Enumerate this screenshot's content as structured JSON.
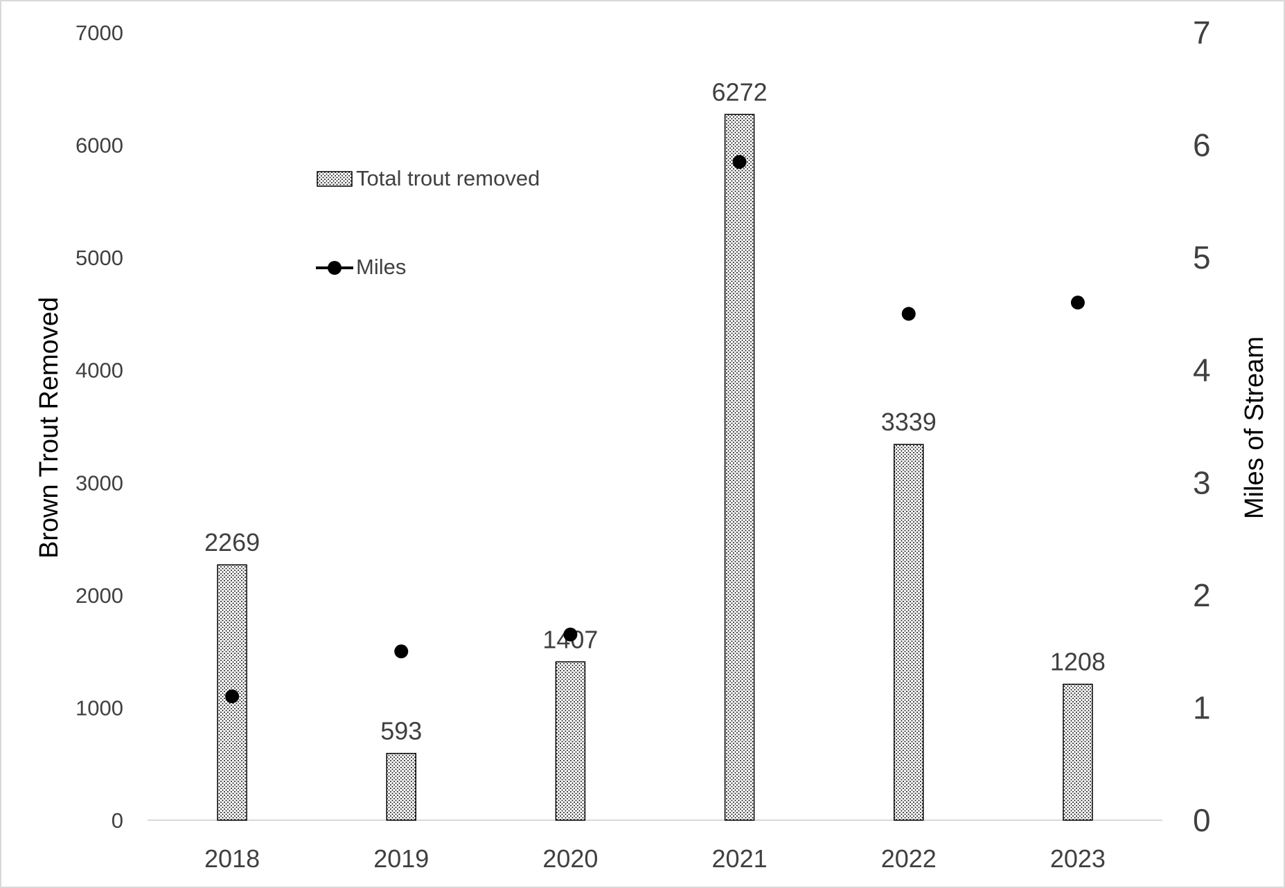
{
  "chart_data": {
    "type": "bar",
    "categories": [
      "2018",
      "2019",
      "2020",
      "2021",
      "2022",
      "2023"
    ],
    "series": [
      {
        "name": "Total trout removed",
        "type": "bar",
        "axis": "left",
        "values": [
          2269,
          593,
          1407,
          6272,
          3339,
          1208
        ],
        "data_labels": [
          "2269",
          "593",
          "1407",
          "6272",
          "3339",
          "1208"
        ]
      },
      {
        "name": "Miles",
        "type": "scatter",
        "axis": "right",
        "values": [
          1.1,
          1.5,
          1.65,
          5.85,
          4.5,
          4.6
        ]
      }
    ],
    "title": "",
    "ylabel": "Brown Trout Removed",
    "y2label": "Miles of Stream",
    "xlabel": "",
    "ylim": [
      0,
      7000
    ],
    "y2lim": [
      0,
      7
    ],
    "yticks": [
      "0",
      "1000",
      "2000",
      "3000",
      "4000",
      "5000",
      "6000",
      "7000"
    ],
    "y2ticks": [
      "0",
      "1",
      "2",
      "3",
      "4",
      "5",
      "6",
      "7"
    ],
    "grid": false,
    "legend_position": "top-left inside",
    "colors": {
      "bar_fill": "#ffffff",
      "bar_pattern_dot": "#000000",
      "bar_border": "#000000",
      "marker": "#000000",
      "axis_line": "#d9d9d9",
      "tick_text": "#404040",
      "axis_title": "#000000"
    }
  }
}
